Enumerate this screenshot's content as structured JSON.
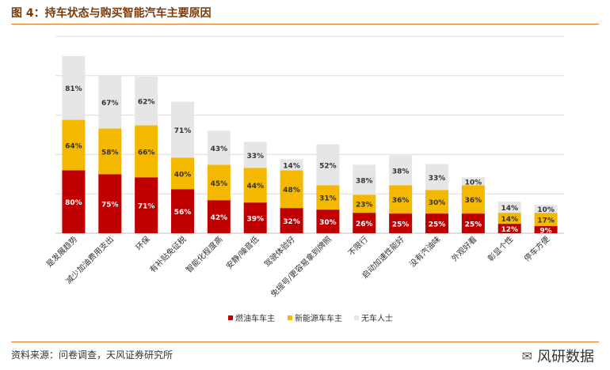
{
  "title": "图 4：持车状态与购买智能汽车主要原因",
  "source": "资料来源：问卷调查，天风证券研究所",
  "watermark": "风研数据",
  "colors": {
    "series0": "#c00000",
    "series1": "#f5b800",
    "series2": "#e6e6e6",
    "grid": "#dcdcdc"
  },
  "chart_data": {
    "type": "bar",
    "stacked": true,
    "categories": [
      "是发展趋势",
      "减少加油费用支出",
      "环保",
      "有补贴免征税",
      "智能化程度高",
      "安静/噪音低",
      "驾驶体验好",
      "免摇号/更容易拿到牌照",
      "不限行",
      "启动加速性能好",
      "没有汽油味",
      "外观好看",
      "彰显个性",
      "停车方便"
    ],
    "series": [
      {
        "name": "燃油车车主",
        "values": [
          80,
          75,
          71,
          56,
          42,
          39,
          32,
          30,
          26,
          25,
          25,
          25,
          12,
          9
        ],
        "labels": [
          "80%",
          "75%",
          "71%",
          "56%",
          "42%",
          "39%",
          "32%",
          "30%",
          "26%",
          "25%",
          "25%",
          "25%",
          "12%",
          "9%"
        ]
      },
      {
        "name": "新能源车车主",
        "values": [
          64,
          58,
          66,
          40,
          45,
          44,
          48,
          31,
          23,
          36,
          30,
          36,
          14,
          17
        ],
        "labels": [
          "64%",
          "58%",
          "66%",
          "40%",
          "45%",
          "44%",
          "48%",
          "31%",
          "23%",
          "36%",
          "30%",
          "36%",
          "14%",
          "17%"
        ]
      },
      {
        "name": "无车人士",
        "values": [
          81,
          67,
          62,
          71,
          43,
          33,
          14,
          52,
          38,
          38,
          33,
          10,
          14,
          10
        ],
        "labels": [
          "81%",
          "67%",
          "62%",
          "71%",
          "43%",
          "33%",
          "14%",
          "52%",
          "38%",
          "38%",
          "33%",
          "10%",
          "14%",
          "10%"
        ]
      }
    ],
    "ylim": [
      0,
      250
    ],
    "legend_position": "bottom"
  }
}
